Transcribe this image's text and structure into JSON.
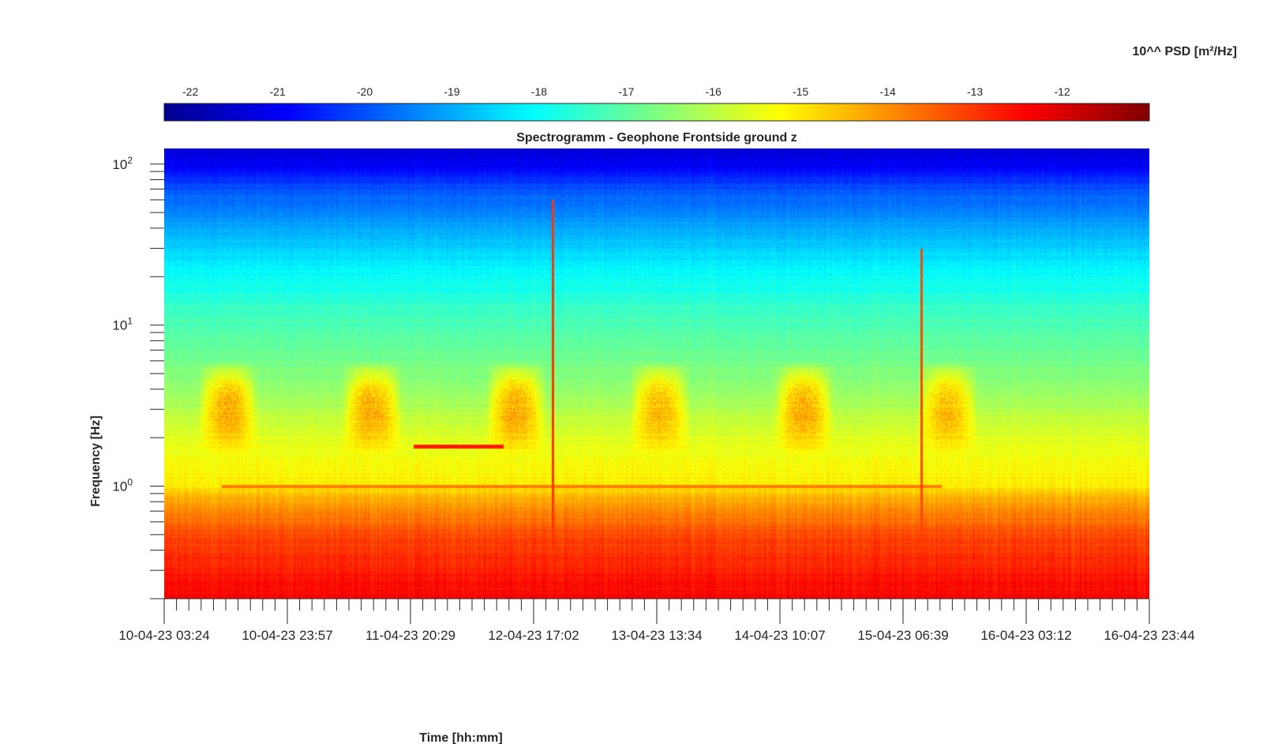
{
  "chart_data": {
    "type": "heatmap",
    "title": "Spectrogramm - Geophone Frontside ground z",
    "xlabel": "Time [hh:mm]",
    "ylabel": "Frequency [Hz]",
    "x_scale": "time",
    "y_scale": "log",
    "ylim": [
      0.2,
      125
    ],
    "x_tick_labels": [
      "10-04-23 03:24",
      "10-04-23 23:57",
      "11-04-23 20:29",
      "12-04-23 17:02",
      "13-04-23 13:34",
      "14-04-23 10:07",
      "15-04-23 06:39",
      "16-04-23 03:12",
      "16-04-23 23:44"
    ],
    "y_ticks": [
      {
        "base": "10",
        "exp": "0",
        "value": 1
      },
      {
        "base": "10",
        "exp": "1",
        "value": 10
      },
      {
        "base": "10",
        "exp": "2",
        "value": 100
      }
    ],
    "colorbar": {
      "label": "10^^ PSD [m²/Hz]",
      "ticks": [
        "-22",
        "-21",
        "-20",
        "-19",
        "-18",
        "-17",
        "-16",
        "-15",
        "-14",
        "-13",
        "-12"
      ],
      "range": [
        -22.3,
        -11.0
      ],
      "colormap": "jet"
    },
    "frequency_profile": [
      {
        "freq": 0.2,
        "log_psd": -12.4
      },
      {
        "freq": 0.3,
        "log_psd": -12.7
      },
      {
        "freq": 0.5,
        "log_psd": -13.2
      },
      {
        "freq": 0.8,
        "log_psd": -14.2
      },
      {
        "freq": 1.0,
        "log_psd": -15.0
      },
      {
        "freq": 2.0,
        "log_psd": -15.6
      },
      {
        "freq": 4.0,
        "log_psd": -16.4
      },
      {
        "freq": 7.0,
        "log_psd": -16.9
      },
      {
        "freq": 10,
        "log_psd": -17.2
      },
      {
        "freq": 20,
        "log_psd": -18.0
      },
      {
        "freq": 40,
        "log_psd": -19.0
      },
      {
        "freq": 70,
        "log_psd": -20.0
      },
      {
        "freq": 100,
        "log_psd": -21.0
      },
      {
        "freq": 125,
        "log_psd": -21.3
      }
    ],
    "events": [
      {
        "type": "daily-activity",
        "start": "10-04-23 09:00",
        "end": "10-04-23 19:00",
        "freq_range": [
          1.5,
          6
        ],
        "log_psd": -14.1
      },
      {
        "type": "daily-activity",
        "start": "11-04-23 09:00",
        "end": "11-04-23 19:00",
        "freq_range": [
          1.5,
          6
        ],
        "log_psd": -14.1
      },
      {
        "type": "daily-activity",
        "start": "12-04-23 09:00",
        "end": "12-04-23 19:00",
        "freq_range": [
          1.5,
          6
        ],
        "log_psd": -14.1
      },
      {
        "type": "daily-activity",
        "start": "13-04-23 09:00",
        "end": "13-04-23 19:00",
        "freq_range": [
          1.5,
          6
        ],
        "log_psd": -14.3
      },
      {
        "type": "daily-activity",
        "start": "14-04-23 09:00",
        "end": "14-04-23 19:00",
        "freq_range": [
          1.5,
          6
        ],
        "log_psd": -14.1
      },
      {
        "type": "daily-activity",
        "start": "15-04-23 09:00",
        "end": "15-04-23 19:00",
        "freq_range": [
          1.5,
          6
        ],
        "log_psd": -14.3
      },
      {
        "type": "tonal-line",
        "start": "10-04-23 13:00",
        "end": "15-04-23 13:00",
        "freq_range": [
          0.98,
          1.02
        ],
        "log_psd": -13.8
      },
      {
        "type": "tonal-line",
        "start": "11-04-23 21:00",
        "end": "12-04-23 12:00",
        "freq_range": [
          1.72,
          1.82
        ],
        "log_psd": -12.7
      },
      {
        "type": "transient",
        "start": "12-04-23 20:00",
        "end": "12-04-23 20:20",
        "freq_range": [
          0.4,
          60
        ],
        "log_psd": -13.0
      },
      {
        "type": "transient",
        "start": "15-04-23 09:30",
        "end": "15-04-23 09:50",
        "freq_range": [
          0.3,
          30
        ],
        "log_psd": -13.2
      }
    ]
  }
}
